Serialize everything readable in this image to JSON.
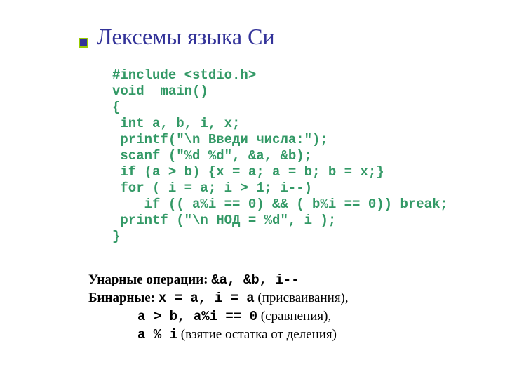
{
  "colors": {
    "title": "#333399",
    "bullet_fill": "#333399",
    "bullet_border": "#99cc00",
    "code": "#339966",
    "text": "#000000",
    "background": "#ffffff"
  },
  "fonts": {
    "title_family": "Times New Roman",
    "title_size_pt": 32,
    "code_family": "Courier New",
    "code_size_pt": 19,
    "notes_family": "Times New Roman",
    "notes_size_pt": 19
  },
  "title": "Лексемы языка Си",
  "code_lines": [
    "#include <stdio.h>",
    "void  main()",
    "{",
    " int a, b, i, x;",
    " printf(\"\\n Введи числа:\");",
    " scanf (\"%d %d\", &a, &b);",
    " if (a > b) {x = a; a = b; b = x;}",
    " for ( i = a; i > 1; i--)",
    "    if (( a%i == 0) && ( b%i == 0)) break;",
    " printf (\"\\n НОД = %d\", i );",
    "}"
  ],
  "notes": {
    "line1_label": "Унарные операции: ",
    "line1_code": "&a, &b, i--",
    "line2_label": "Бинарные: ",
    "line2_code": "x = a, i = a",
    "line2_tail": "   (присваивания),",
    "line3_code": "a > b, a%i == 0",
    "line3_tail": "   (сравнения),",
    "line4_code": "a % i",
    "line4_tail": "  (взятие остатка от деления)"
  }
}
